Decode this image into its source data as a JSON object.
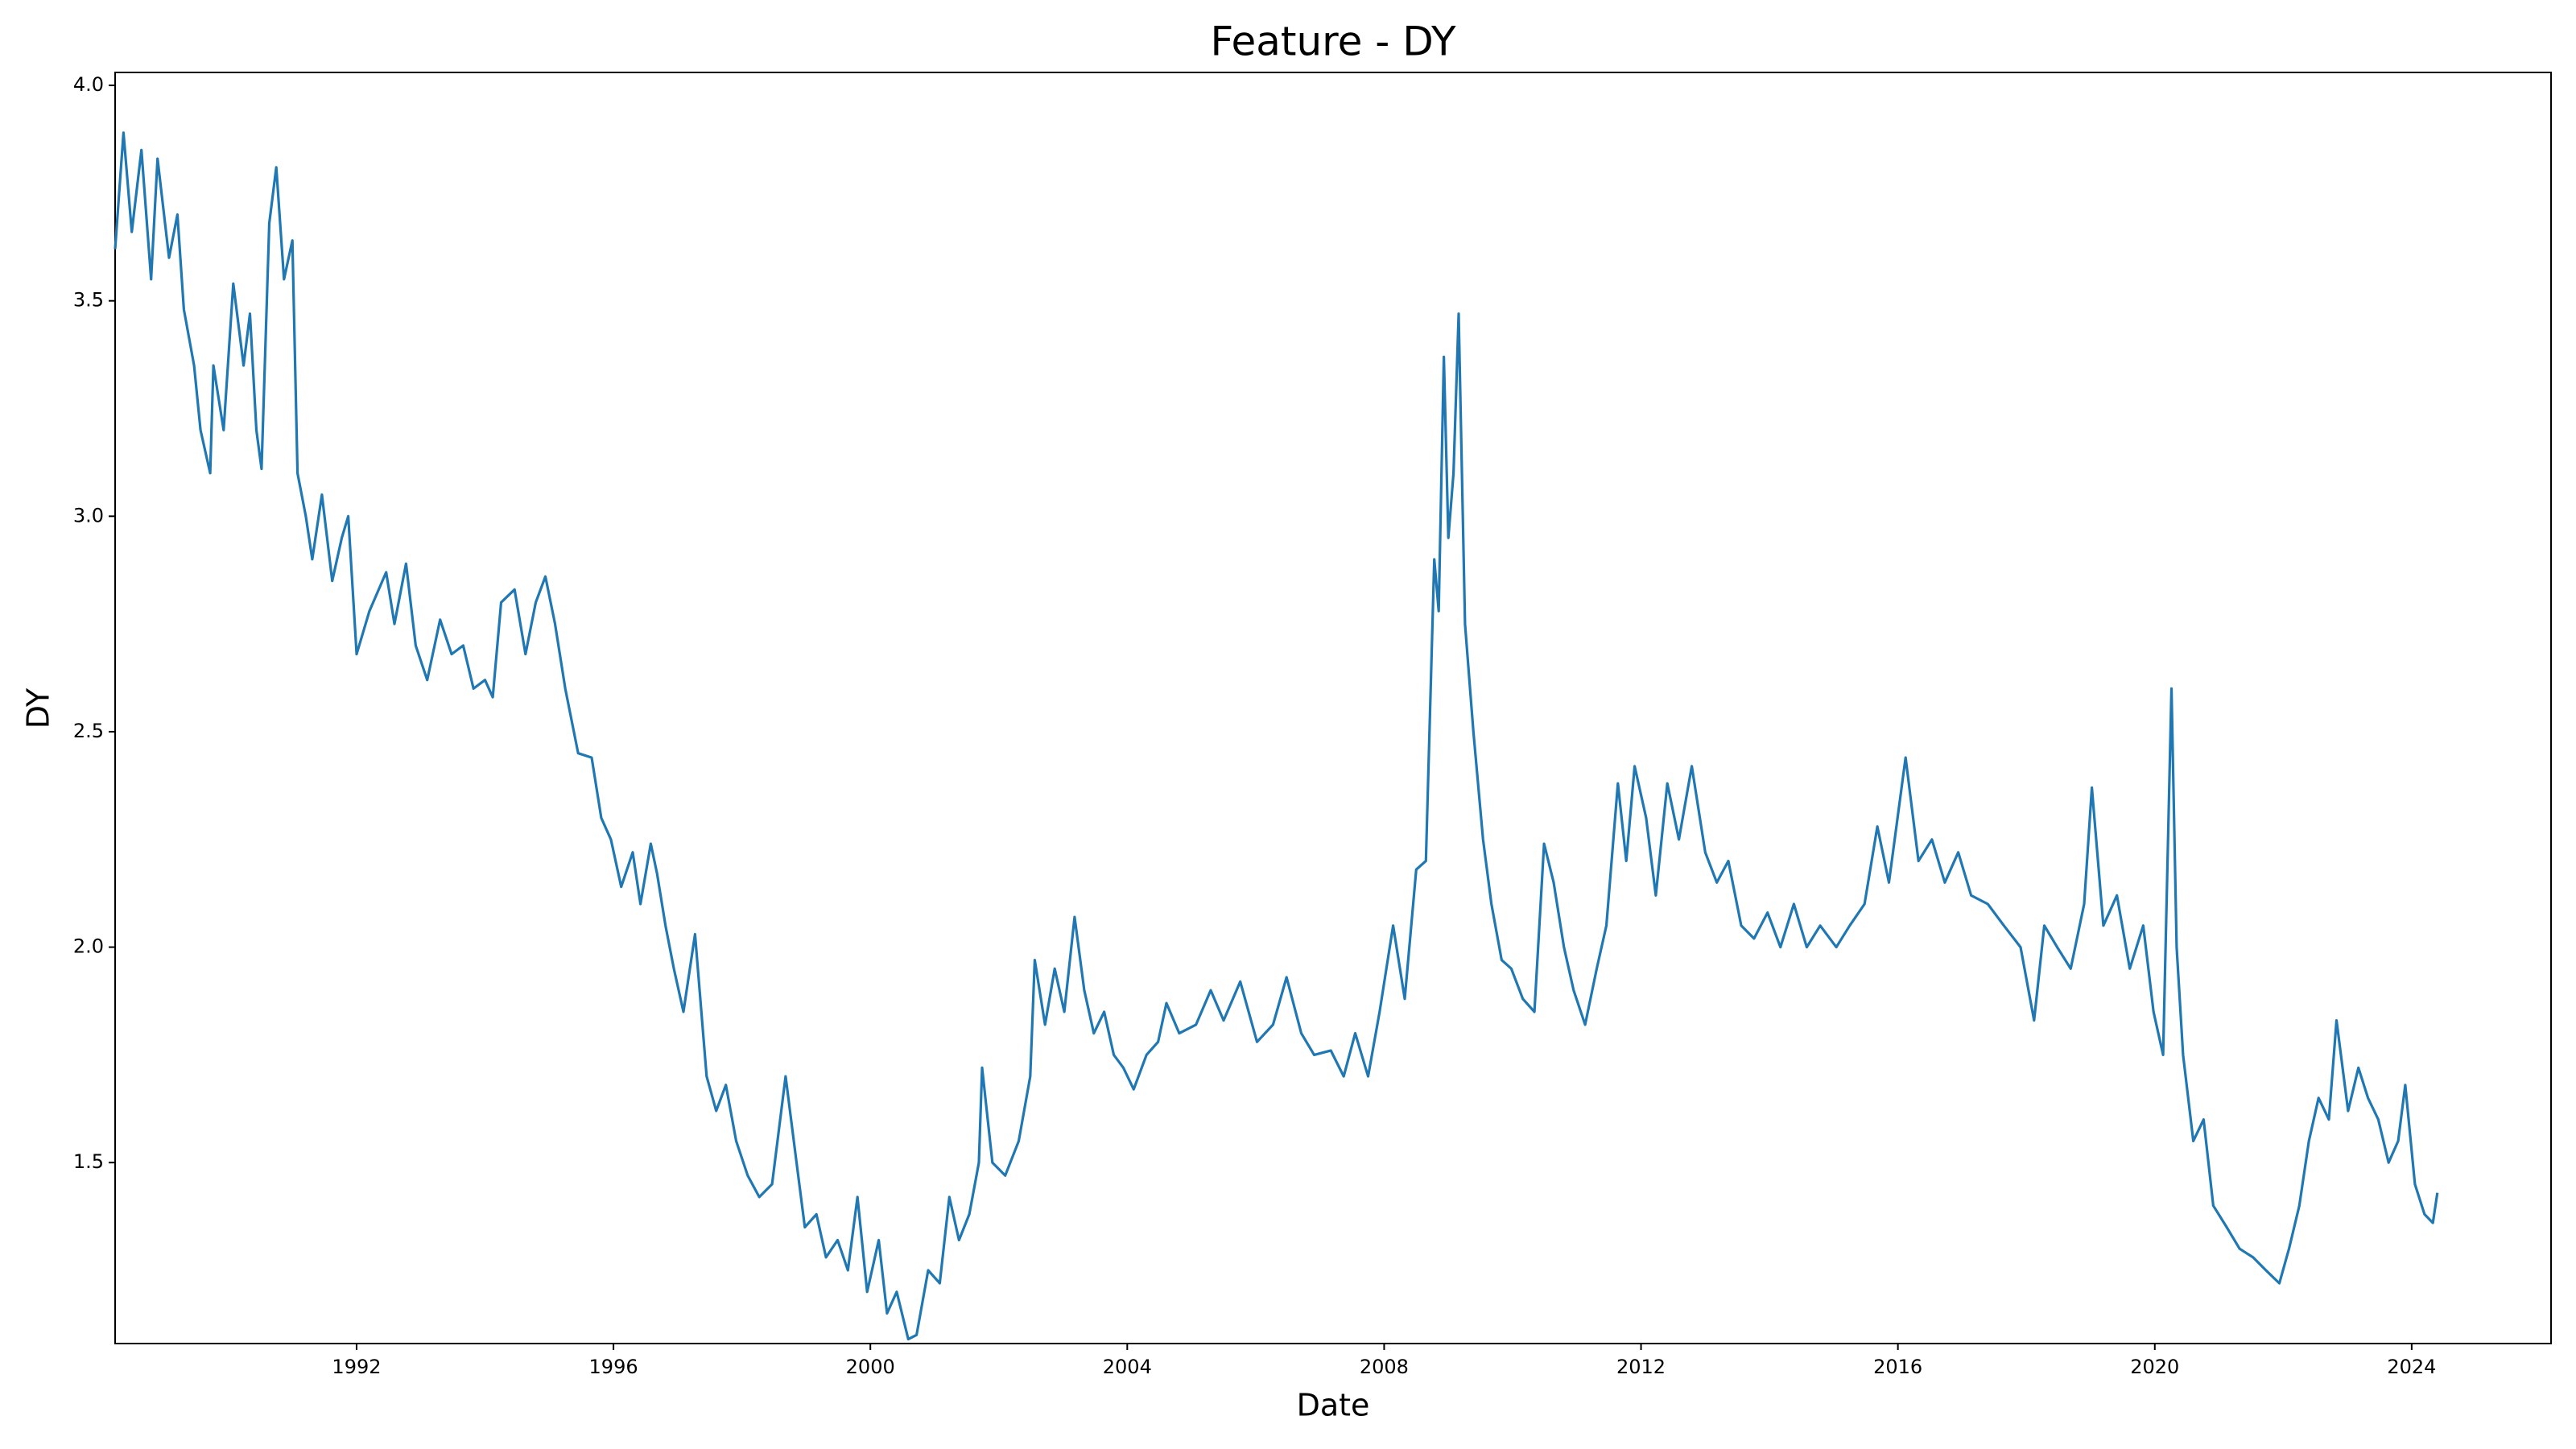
{
  "chart_data": {
    "type": "line",
    "title": "Feature - DY",
    "x_label": "Date",
    "y_label": "DY",
    "x": [
      1988.24,
      1988.37,
      1988.5,
      1988.65,
      1988.8,
      1988.9,
      1989.08,
      1989.21,
      1989.31,
      1989.47,
      1989.57,
      1989.72,
      1989.77,
      1989.93,
      1990.08,
      1990.24,
      1990.34,
      1990.44,
      1990.52,
      1990.64,
      1990.75,
      1990.87,
      1991.0,
      1991.08,
      1991.21,
      1991.31,
      1991.46,
      1991.62,
      1991.77,
      1991.87,
      1992.0,
      1992.2,
      1992.46,
      1992.59,
      1992.77,
      1992.92,
      1993.1,
      1993.3,
      1993.48,
      1993.66,
      1993.82,
      1994.0,
      1994.12,
      1994.25,
      1994.46,
      1994.63,
      1994.79,
      1994.94,
      1995.09,
      1995.25,
      1995.45,
      1995.66,
      1995.81,
      1995.96,
      1996.12,
      1996.3,
      1996.42,
      1996.58,
      1996.68,
      1996.81,
      1996.94,
      1997.09,
      1997.27,
      1997.45,
      1997.6,
      1997.75,
      1997.91,
      1998.09,
      1998.27,
      1998.47,
      1998.68,
      1998.85,
      1998.98,
      1999.16,
      1999.31,
      1999.49,
      1999.65,
      1999.8,
      1999.95,
      2000.13,
      2000.26,
      2000.41,
      2000.59,
      2000.72,
      2000.9,
      2001.08,
      2001.23,
      2001.38,
      2001.54,
      2001.69,
      2001.74,
      2001.9,
      2002.1,
      2002.31,
      2002.49,
      2002.56,
      2002.72,
      2002.87,
      2003.02,
      2003.18,
      2003.33,
      2003.48,
      2003.64,
      2003.79,
      2003.94,
      2004.1,
      2004.3,
      2004.48,
      2004.61,
      2004.81,
      2005.07,
      2005.3,
      2005.5,
      2005.76,
      2006.02,
      2006.27,
      2006.48,
      2006.71,
      2006.91,
      2007.17,
      2007.37,
      2007.55,
      2007.75,
      2007.93,
      2008.14,
      2008.32,
      2008.5,
      2008.65,
      2008.78,
      2008.85,
      2008.93,
      2009.0,
      2009.08,
      2009.16,
      2009.26,
      2009.39,
      2009.54,
      2009.67,
      2009.83,
      2009.98,
      2010.16,
      2010.34,
      2010.49,
      2010.64,
      2010.8,
      2010.95,
      2011.13,
      2011.31,
      2011.46,
      2011.64,
      2011.77,
      2011.9,
      2012.08,
      2012.23,
      2012.41,
      2012.59,
      2012.79,
      2013.0,
      2013.18,
      2013.36,
      2013.56,
      2013.76,
      2013.97,
      2014.17,
      2014.38,
      2014.58,
      2014.79,
      2015.04,
      2015.25,
      2015.48,
      2015.68,
      2015.86,
      2016.12,
      2016.32,
      2016.53,
      2016.73,
      2016.94,
      2017.14,
      2017.4,
      2017.65,
      2017.91,
      2018.12,
      2018.28,
      2018.48,
      2018.69,
      2018.9,
      2019.02,
      2019.2,
      2019.41,
      2019.61,
      2019.82,
      2019.98,
      2020.13,
      2020.26,
      2020.34,
      2020.44,
      2020.6,
      2020.76,
      2020.91,
      2021.12,
      2021.32,
      2021.53,
      2021.73,
      2021.94,
      2022.09,
      2022.25,
      2022.4,
      2022.55,
      2022.71,
      2022.83,
      2023.01,
      2023.17,
      2023.32,
      2023.48,
      2023.64,
      2023.79,
      2023.9,
      2024.05,
      2024.2,
      2024.33,
      2024.4
    ],
    "series": [
      {
        "name": "DY",
        "color": "#1f77b4",
        "values": [
          3.62,
          3.89,
          3.66,
          3.85,
          3.55,
          3.83,
          3.6,
          3.7,
          3.48,
          3.35,
          3.2,
          3.1,
          3.35,
          3.2,
          3.54,
          3.35,
          3.47,
          3.2,
          3.11,
          3.68,
          3.81,
          3.55,
          3.64,
          3.1,
          3.0,
          2.9,
          3.05,
          2.85,
          2.95,
          3.0,
          2.68,
          2.78,
          2.87,
          2.75,
          2.89,
          2.7,
          2.62,
          2.76,
          2.68,
          2.7,
          2.6,
          2.62,
          2.58,
          2.8,
          2.83,
          2.68,
          2.8,
          2.86,
          2.75,
          2.6,
          2.45,
          2.44,
          2.3,
          2.25,
          2.14,
          2.22,
          2.1,
          2.24,
          2.17,
          2.05,
          1.95,
          1.85,
          2.03,
          1.7,
          1.62,
          1.68,
          1.55,
          1.47,
          1.42,
          1.45,
          1.7,
          1.5,
          1.35,
          1.38,
          1.28,
          1.32,
          1.25,
          1.42,
          1.2,
          1.32,
          1.15,
          1.2,
          1.09,
          1.1,
          1.25,
          1.22,
          1.42,
          1.32,
          1.38,
          1.5,
          1.72,
          1.5,
          1.47,
          1.55,
          1.7,
          1.97,
          1.82,
          1.95,
          1.85,
          2.07,
          1.9,
          1.8,
          1.85,
          1.75,
          1.72,
          1.67,
          1.75,
          1.78,
          1.87,
          1.8,
          1.82,
          1.9,
          1.83,
          1.92,
          1.78,
          1.82,
          1.93,
          1.8,
          1.75,
          1.76,
          1.7,
          1.8,
          1.7,
          1.85,
          2.05,
          1.88,
          2.18,
          2.2,
          2.9,
          2.78,
          3.37,
          2.95,
          3.1,
          3.47,
          2.75,
          2.5,
          2.25,
          2.1,
          1.97,
          1.95,
          1.88,
          1.85,
          2.24,
          2.15,
          2.0,
          1.9,
          1.82,
          1.95,
          2.05,
          2.38,
          2.2,
          2.42,
          2.3,
          2.12,
          2.38,
          2.25,
          2.42,
          2.22,
          2.15,
          2.2,
          2.05,
          2.02,
          2.08,
          2.0,
          2.1,
          2.0,
          2.05,
          2.0,
          2.05,
          2.1,
          2.28,
          2.15,
          2.44,
          2.2,
          2.25,
          2.15,
          2.22,
          2.12,
          2.1,
          2.05,
          2.0,
          1.83,
          2.05,
          2.0,
          1.95,
          2.1,
          2.37,
          2.05,
          2.12,
          1.95,
          2.05,
          1.85,
          1.75,
          2.6,
          2.0,
          1.75,
          1.55,
          1.6,
          1.4,
          1.35,
          1.3,
          1.28,
          1.25,
          1.22,
          1.3,
          1.4,
          1.55,
          1.65,
          1.6,
          1.83,
          1.62,
          1.72,
          1.65,
          1.6,
          1.5,
          1.55,
          1.68,
          1.45,
          1.38,
          1.36,
          1.43
        ]
      }
    ],
    "xlim": [
      1988.24,
      2026.17
    ],
    "xticks": [
      1992,
      1996,
      2000,
      2004,
      2008,
      2012,
      2016,
      2020,
      2024
    ],
    "ylim": [
      1.08,
      4.03
    ],
    "yticks": [
      1.5,
      {
        "value": 2,
        "label": "2.0"
      },
      2.5,
      {
        "value": 3,
        "label": "3.0"
      },
      3.5,
      {
        "value": 4,
        "label": "4.0"
      }
    ],
    "grid": false
  }
}
